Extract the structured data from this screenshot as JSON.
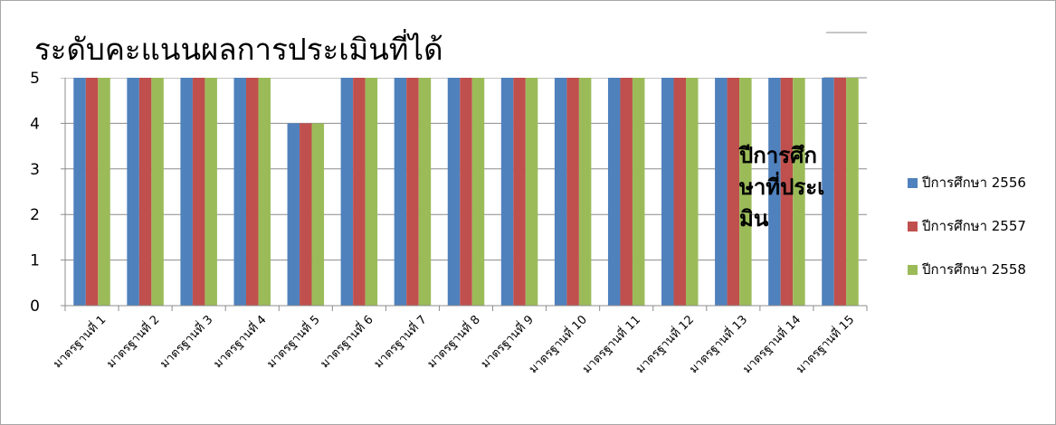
{
  "chart_data": {
    "type": "bar",
    "title": "ระดับคะแนนผลการประเมินที่ได้",
    "categories": [
      "มาตรฐานที่ 1",
      "มาตรฐานที่ 2",
      "มาตรฐานที่ 3",
      "มาตรฐานที่ 4",
      "มาตรฐานที่ 5",
      "มาตรฐานที่ 6",
      "มาตรฐานที่ 7",
      "มาตรฐานที่ 8",
      "มาตรฐานที่ 9",
      "มาตรฐานที่ 10",
      "มาตรฐานที่ 11",
      "มาตรฐานที่ 12",
      "มาตรฐานที่ 13",
      "มาตรฐานที่ 14",
      "มาตรฐานที่ 15"
    ],
    "series": [
      {
        "name": "ปีการศึกษา 2556",
        "color": "#4f81bd",
        "values": [
          5,
          5,
          5,
          5,
          4,
          5,
          5,
          5,
          5,
          5,
          5,
          5,
          5,
          5,
          5
        ]
      },
      {
        "name": "ปีการศึกษา 2557",
        "color": "#c0504d",
        "values": [
          5,
          5,
          5,
          5,
          4,
          5,
          5,
          5,
          5,
          5,
          5,
          5,
          5,
          5,
          5
        ]
      },
      {
        "name": "ปีการศึกษา 2558",
        "color": "#9bbb59",
        "values": [
          5,
          5,
          5,
          5,
          4,
          5,
          5,
          5,
          5,
          5,
          5,
          5,
          5,
          5,
          5
        ]
      }
    ],
    "y_ticks": [
      "0",
      "1",
      "2",
      "3",
      "4",
      "5"
    ],
    "ylim": [
      0,
      5
    ],
    "grid": true,
    "legend_position": "right",
    "overlay_text": "ปีการศึกษาที่ประเมิน"
  }
}
